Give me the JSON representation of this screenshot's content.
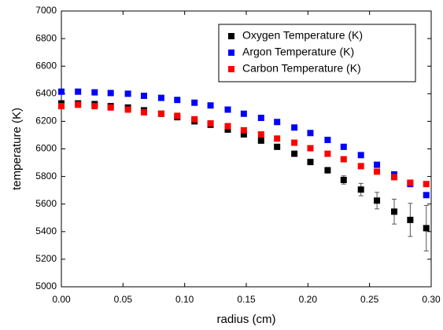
{
  "chart_data": {
    "type": "scatter",
    "xlabel": "radius (cm)",
    "ylabel": "temperature (K)",
    "x": [
      0,
      0.0135,
      0.027,
      0.04,
      0.054,
      0.067,
      0.081,
      0.094,
      0.108,
      0.121,
      0.135,
      0.148,
      0.162,
      0.175,
      0.189,
      0.202,
      0.216,
      0.229,
      0.243,
      0.256,
      0.27,
      0.283,
      0.296
    ],
    "series": [
      {
        "name": "Oxygen Temperature (K)",
        "color": "#000000",
        "values": [
          6330,
          6330,
          6325,
          6310,
          6300,
          6280,
          6255,
          6230,
          6200,
          6175,
          6140,
          6105,
          6060,
          6015,
          5965,
          5905,
          5845,
          5775,
          5705,
          5625,
          5545,
          5485,
          5425
        ],
        "errors": [
          5,
          5,
          5,
          5,
          5,
          5,
          5,
          5,
          5,
          5,
          5,
          5,
          8,
          8,
          10,
          12,
          20,
          30,
          45,
          60,
          90,
          120,
          165
        ]
      },
      {
        "name": "Argon Temperature (K)",
        "color": "#0000ff",
        "values": [
          6415,
          6415,
          6410,
          6405,
          6400,
          6385,
          6370,
          6355,
          6335,
          6315,
          6285,
          6255,
          6225,
          6195,
          6155,
          6115,
          6065,
          6015,
          5955,
          5885,
          5815,
          5745,
          5665
        ]
      },
      {
        "name": "Carbon Temperature (K)",
        "color": "#ff0000",
        "values": [
          6310,
          6320,
          6310,
          6300,
          6285,
          6265,
          6255,
          6240,
          6215,
          6185,
          6165,
          6135,
          6105,
          6075,
          6045,
          6005,
          5965,
          5925,
          5875,
          5835,
          5795,
          5755,
          5745
        ]
      }
    ],
    "xlim": [
      0,
      0.3
    ],
    "xticks": [
      {
        "value": 0,
        "label": "0.00"
      },
      {
        "value": 0.05,
        "label": "0.05"
      },
      {
        "value": 0.1,
        "label": "0.10"
      },
      {
        "value": 0.15,
        "label": "0.15"
      },
      {
        "value": 0.2,
        "label": "0.20"
      },
      {
        "value": 0.25,
        "label": "0.25"
      },
      {
        "value": 0.3,
        "label": "0.30"
      }
    ],
    "ylim": [
      5000,
      7000
    ],
    "yticks": [
      5000,
      5200,
      5400,
      5600,
      5800,
      6000,
      6200,
      6400,
      6600,
      6800,
      7000
    ],
    "legend": "upper right",
    "grid": false
  }
}
